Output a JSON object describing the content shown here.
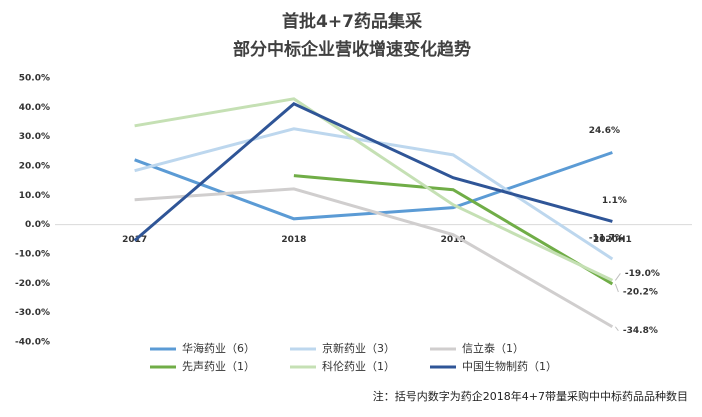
{
  "chart_data": {
    "type": "line",
    "title": "首批4+7药品集采",
    "subtitle": "部分中标企业营收增速变化趋势",
    "categories": [
      "2017",
      "2018",
      "2019",
      "2020H1"
    ],
    "ylim": [
      -40,
      50
    ],
    "yticks": [
      {
        "value": -40,
        "label": "-40.0%"
      },
      {
        "value": -30,
        "label": "-30.0%"
      },
      {
        "value": -20,
        "label": "-20.0%"
      },
      {
        "value": -10,
        "label": "-10.0%"
      },
      {
        "value": 0,
        "label": "0.0%"
      },
      {
        "value": 10,
        "label": "10.0%"
      },
      {
        "value": 20,
        "label": "20.0%"
      },
      {
        "value": 30,
        "label": "30.0%"
      },
      {
        "value": 40,
        "label": "40.0%"
      },
      {
        "value": 50,
        "label": "50.0%"
      }
    ],
    "grid": false,
    "series": [
      {
        "name": "华海药业（6）",
        "color": "#5b9bd5",
        "values": [
          22.1,
          2.0,
          5.8,
          24.6
        ],
        "value_labels": [
          null,
          null,
          null,
          "24.6%"
        ],
        "label_color": "#333333"
      },
      {
        "name": "京新药业（3）",
        "color": "#bdd7ee",
        "values": [
          18.4,
          32.7,
          23.8,
          -11.7
        ],
        "value_labels": [
          null,
          null,
          null,
          "-11.7%"
        ],
        "label_color": "#ff0000"
      },
      {
        "name": "信立泰（1）",
        "color": "#d0cece",
        "values": [
          8.5,
          12.2,
          -3.4,
          -34.8
        ],
        "value_labels": [
          null,
          null,
          null,
          "-34.8%"
        ],
        "label_color": "#ff0000"
      },
      {
        "name": "先声药业（1）",
        "color": "#70ad47",
        "values": [
          null,
          16.7,
          11.9,
          -20.2
        ],
        "value_labels": [
          null,
          null,
          null,
          "-20.2%"
        ],
        "label_color": "#ff0000"
      },
      {
        "name": "科伦药业（1）",
        "color": "#c5e0b4",
        "values": [
          33.7,
          42.9,
          6.8,
          -19.0
        ],
        "value_labels": [
          null,
          null,
          null,
          "-19.0%"
        ],
        "label_color": "#ff0000"
      },
      {
        "name": "中国生物制药（1）",
        "color": "#2f5597",
        "values": [
          -5.4,
          41.2,
          16.0,
          1.1
        ],
        "value_labels": [
          null,
          null,
          null,
          "1.1%"
        ],
        "label_color": "#333333"
      }
    ],
    "note": "注：括号内数字为药企2018年4+7带量采购中中标药品品种数目"
  }
}
